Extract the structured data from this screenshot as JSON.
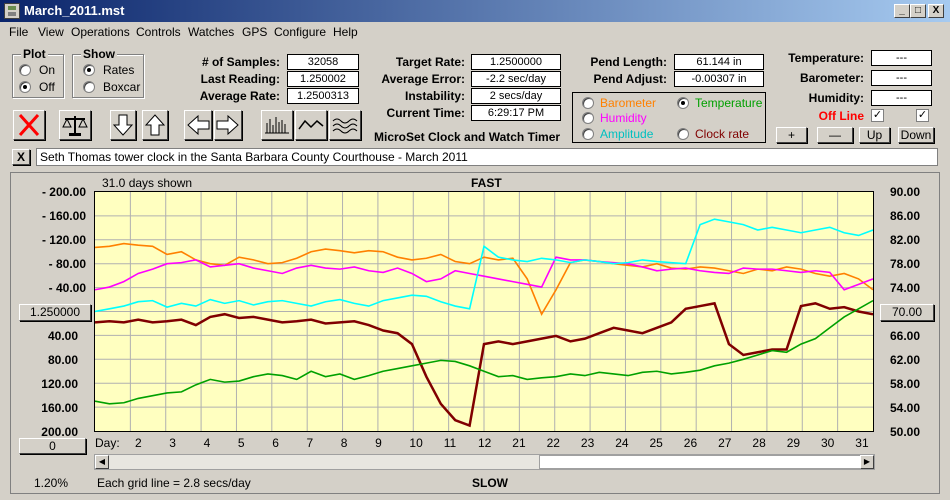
{
  "window": {
    "title": "March_2011.mst",
    "min": "_",
    "max": "□",
    "close": "X"
  },
  "menu": [
    "File",
    "View",
    "Operations",
    "Controls",
    "Watches",
    "GPS",
    "Configure",
    "Help"
  ],
  "plot_group": {
    "title": "Plot",
    "options": [
      "On",
      "Off"
    ],
    "selected": "Off"
  },
  "show_group": {
    "title": "Show",
    "options": [
      "Rates",
      "Boxcar"
    ],
    "selected": "Rates"
  },
  "stats": {
    "samples_label": "# of Samples:",
    "samples": "32058",
    "last_label": "Last Reading:",
    "last": "1.250002",
    "avg_rate_label": "Average Rate:",
    "avg_rate": "1.2500313",
    "target_label": "Target Rate:",
    "target": "1.2500000",
    "avg_err_label": "Average Error:",
    "avg_err": "-2.2 sec/day",
    "instab_label": "Instability:",
    "instab": "2 secs/day",
    "time_label": "Current Time:",
    "time": "6:29:17 PM",
    "pend_len_label": "Pend Length:",
    "pend_len": "61.144 in",
    "pend_adj_label": "Pend Adjust:",
    "pend_adj": "-0.00307 in",
    "temp_label": "Temperature:",
    "temp": "---",
    "baro_label": "Barometer:",
    "baro": "---",
    "hum_label": "Humidity:",
    "hum": "---"
  },
  "app_name": "MicroSet Clock and Watch Timer",
  "sensor_options": [
    {
      "label": "Barometer",
      "color": "#ff8000",
      "selected": false
    },
    {
      "label": "Temperature",
      "color": "#00a000",
      "selected": true
    },
    {
      "label": "Humidity",
      "color": "#ff00ff",
      "selected": false
    },
    {
      "label": "Amplitude",
      "color": "#00ffff",
      "selected": false
    },
    {
      "label": "Clock rate",
      "color": "#800000",
      "selected": false
    }
  ],
  "offline_label": "Off Line",
  "check_mark": "✓",
  "adjust_buttons": [
    "+",
    "—",
    "Up",
    "Down"
  ],
  "description": "Seth Thomas tower clock in the Santa Barbara County Courthouse - March 2011",
  "desc_close": "X",
  "chart_header": {
    "days_shown": "31.0 days shown",
    "fast": "FAST",
    "slow": "SLOW"
  },
  "left_button": "1.250000",
  "right_button": "70.00",
  "scroll_button": "0",
  "footer": {
    "percent": "1.20%",
    "grid": "Each grid line = 2.8 secs/day"
  },
  "chart_data": {
    "type": "line",
    "x_label": "Day:",
    "x_ticks": [
      "2",
      "3",
      "4",
      "5",
      "6",
      "7",
      "8",
      "9",
      "10",
      "11",
      "12",
      "21",
      "22",
      "23",
      "24",
      "25",
      "26",
      "27",
      "28",
      "29",
      "30",
      "31"
    ],
    "y_left_ticks": [
      "- 200.00",
      "- 160.00",
      "- 120.00",
      "- 80.00",
      "- 40.00",
      "40.00",
      "80.00",
      "120.00",
      "160.00",
      "200.00"
    ],
    "y_right_ticks": [
      "90.00",
      "86.00",
      "82.00",
      "78.00",
      "74.00",
      "66.00",
      "62.00",
      "58.00",
      "54.00",
      "50.00"
    ],
    "x_range": [
      1,
      32
    ],
    "series": [
      {
        "color": "#ff8000",
        "values": [
          118,
          120,
          125,
          122,
          120,
          105,
          110,
          95,
          88,
          85,
          100,
          95,
          88,
          90,
          98,
          110,
          115,
          112,
          108,
          112,
          110,
          100,
          95,
          98,
          105,
          92,
          88,
          100,
          95,
          98,
          60,
          -5,
          40,
          90,
          95,
          92,
          88,
          85,
          82,
          88,
          80,
          78,
          82,
          80,
          75,
          70,
          78,
          75,
          82,
          78,
          70,
          65,
          70,
          60,
          40
        ]
      },
      {
        "color": "#ff00ff",
        "values": [
          40,
          45,
          55,
          70,
          78,
          88,
          90,
          95,
          82,
          85,
          88,
          80,
          75,
          70,
          80,
          85,
          80,
          78,
          82,
          75,
          72,
          80,
          70,
          55,
          60,
          75,
          70,
          65,
          60,
          55,
          50,
          45,
          100,
          95,
          95,
          92,
          90,
          88,
          82,
          75,
          78,
          80,
          75,
          72,
          70,
          80,
          78,
          78,
          75,
          72,
          75,
          72,
          40,
          50,
          60
        ]
      },
      {
        "color": "#00ffff",
        "values": [
          0,
          5,
          10,
          18,
          20,
          8,
          15,
          10,
          22,
          15,
          20,
          12,
          18,
          20,
          15,
          10,
          18,
          22,
          15,
          10,
          20,
          25,
          30,
          28,
          18,
          10,
          5,
          120,
          100,
          95,
          92,
          98,
          95,
          90,
          95,
          92,
          88,
          90,
          95,
          92,
          90,
          88,
          160,
          170,
          165,
          160,
          150,
          155,
          150,
          145,
          150,
          155,
          145,
          140,
          150
        ]
      },
      {
        "color": "#800000",
        "values": [
          -20,
          -18,
          -20,
          -15,
          -20,
          -18,
          -15,
          -25,
          -10,
          -5,
          -12,
          -10,
          -15,
          -20,
          -18,
          -15,
          -22,
          -20,
          -18,
          -25,
          -35,
          -40,
          -60,
          -120,
          -170,
          -200,
          -210,
          -60,
          -55,
          -60,
          -55,
          -50,
          -45,
          -55,
          -50,
          -40,
          -30,
          -35,
          -40,
          -30,
          -20,
          5,
          10,
          15,
          -60,
          -80,
          -75,
          -70,
          -70,
          10,
          15,
          5,
          8,
          0,
          -5
        ]
      },
      {
        "color": "#00a000",
        "values": [
          -165,
          -170,
          -168,
          -160,
          -155,
          -150,
          -148,
          -135,
          -125,
          -130,
          -128,
          -120,
          -115,
          -118,
          -125,
          -110,
          -120,
          -115,
          -125,
          -118,
          -110,
          -105,
          -100,
          -95,
          -90,
          -92,
          -100,
          -110,
          -120,
          -118,
          -125,
          -122,
          -120,
          -115,
          -118,
          -112,
          -115,
          -118,
          -112,
          -110,
          -115,
          -112,
          -108,
          -100,
          -95,
          -88,
          -80,
          -72,
          -75,
          -60,
          -50,
          -30,
          -10,
          5,
          20
        ]
      }
    ]
  }
}
